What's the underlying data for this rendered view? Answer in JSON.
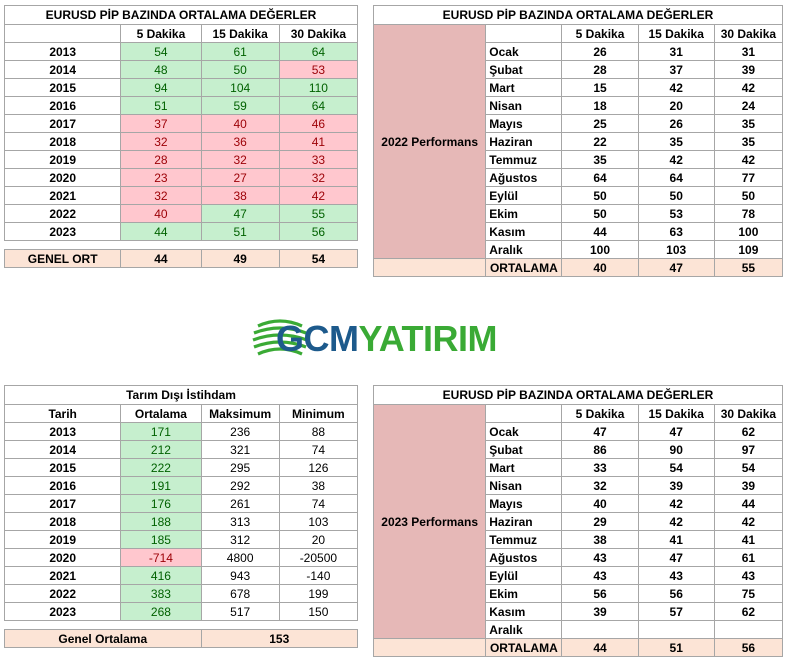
{
  "table1": {
    "title": "EURUSD  PİP BAZINDA ORTALAMA DEĞERLER",
    "headers": [
      "",
      "5 Dakika",
      "15 Dakika",
      "30 Dakika"
    ],
    "rows": [
      {
        "year": "2013",
        "v": [
          "54",
          "61",
          "64"
        ],
        "c": [
          "green",
          "green",
          "green"
        ]
      },
      {
        "year": "2014",
        "v": [
          "48",
          "50",
          "53"
        ],
        "c": [
          "green",
          "green",
          "red"
        ]
      },
      {
        "year": "2015",
        "v": [
          "94",
          "104",
          "110"
        ],
        "c": [
          "green",
          "green",
          "green"
        ]
      },
      {
        "year": "2016",
        "v": [
          "51",
          "59",
          "64"
        ],
        "c": [
          "green",
          "green",
          "green"
        ]
      },
      {
        "year": "2017",
        "v": [
          "37",
          "40",
          "46"
        ],
        "c": [
          "red",
          "red",
          "red"
        ]
      },
      {
        "year": "2018",
        "v": [
          "32",
          "36",
          "41"
        ],
        "c": [
          "red",
          "red",
          "red"
        ]
      },
      {
        "year": "2019",
        "v": [
          "28",
          "32",
          "33"
        ],
        "c": [
          "red",
          "red",
          "red"
        ]
      },
      {
        "year": "2020",
        "v": [
          "23",
          "27",
          "32"
        ],
        "c": [
          "red",
          "red",
          "red"
        ]
      },
      {
        "year": "2021",
        "v": [
          "32",
          "38",
          "42"
        ],
        "c": [
          "red",
          "red",
          "red"
        ]
      },
      {
        "year": "2022",
        "v": [
          "40",
          "47",
          "55"
        ],
        "c": [
          "red",
          "green",
          "green"
        ]
      },
      {
        "year": "2023",
        "v": [
          "44",
          "51",
          "56"
        ],
        "c": [
          "green",
          "green",
          "green"
        ]
      }
    ],
    "summary_label": "GENEL ORT",
    "summary": [
      "44",
      "49",
      "54"
    ]
  },
  "table2": {
    "title": "EURUSD  PİP BAZINDA ORTALAMA DEĞERLER",
    "headers": [
      "5 Dakika",
      "15 Dakika",
      "30 Dakika"
    ],
    "side_label": "2022 Performans",
    "rows": [
      {
        "m": "Ocak",
        "v": [
          "26",
          "31",
          "31"
        ]
      },
      {
        "m": "Şubat",
        "v": [
          "28",
          "37",
          "39"
        ]
      },
      {
        "m": "Mart",
        "v": [
          "15",
          "42",
          "42"
        ]
      },
      {
        "m": "Nisan",
        "v": [
          "18",
          "20",
          "24"
        ]
      },
      {
        "m": "Mayıs",
        "v": [
          "25",
          "26",
          "35"
        ]
      },
      {
        "m": "Haziran",
        "v": [
          "22",
          "35",
          "35"
        ]
      },
      {
        "m": "Temmuz",
        "v": [
          "35",
          "42",
          "42"
        ]
      },
      {
        "m": "Ağustos",
        "v": [
          "64",
          "64",
          "77"
        ]
      },
      {
        "m": "Eylül",
        "v": [
          "50",
          "50",
          "50"
        ]
      },
      {
        "m": "Ekim",
        "v": [
          "50",
          "53",
          "78"
        ]
      },
      {
        "m": "Kasım",
        "v": [
          "44",
          "63",
          "100"
        ]
      },
      {
        "m": "Aralık",
        "v": [
          "100",
          "103",
          "109"
        ]
      }
    ],
    "summary_label": "ORTALAMA",
    "summary": [
      "40",
      "47",
      "55"
    ]
  },
  "logo": {
    "part1": "GCM",
    "part2": "YATIRIM"
  },
  "table3": {
    "title": "Tarım Dışı İstihdam",
    "headers": [
      "Tarih",
      "Ortalama",
      "Maksimum",
      "Minimum"
    ],
    "rows": [
      {
        "year": "2013",
        "v": [
          "171",
          "236",
          "88"
        ],
        "c": "green"
      },
      {
        "year": "2014",
        "v": [
          "212",
          "321",
          "74"
        ],
        "c": "green"
      },
      {
        "year": "2015",
        "v": [
          "222",
          "295",
          "126"
        ],
        "c": "green"
      },
      {
        "year": "2016",
        "v": [
          "191",
          "292",
          "38"
        ],
        "c": "green"
      },
      {
        "year": "2017",
        "v": [
          "176",
          "261",
          "74"
        ],
        "c": "green"
      },
      {
        "year": "2018",
        "v": [
          "188",
          "313",
          "103"
        ],
        "c": "green"
      },
      {
        "year": "2019",
        "v": [
          "185",
          "312",
          "20"
        ],
        "c": "green"
      },
      {
        "year": "2020",
        "v": [
          "-714",
          "4800",
          "-20500"
        ],
        "c": "red"
      },
      {
        "year": "2021",
        "v": [
          "416",
          "943",
          "-140"
        ],
        "c": "green"
      },
      {
        "year": "2022",
        "v": [
          "383",
          "678",
          "199"
        ],
        "c": "green"
      },
      {
        "year": "2023",
        "v": [
          "268",
          "517",
          "150"
        ],
        "c": "green"
      }
    ],
    "summary_label": "Genel Ortalama",
    "summary": "153"
  },
  "table4": {
    "title": "EURUSD  PİP BAZINDA ORTALAMA DEĞERLER",
    "headers": [
      "5 Dakika",
      "15 Dakika",
      "30 Dakika"
    ],
    "side_label": "2023 Performans",
    "rows": [
      {
        "m": "Ocak",
        "v": [
          "47",
          "47",
          "62"
        ]
      },
      {
        "m": "Şubat",
        "v": [
          "86",
          "90",
          "97"
        ]
      },
      {
        "m": "Mart",
        "v": [
          "33",
          "54",
          "54"
        ]
      },
      {
        "m": "Nisan",
        "v": [
          "32",
          "39",
          "39"
        ]
      },
      {
        "m": "Mayıs",
        "v": [
          "40",
          "42",
          "44"
        ]
      },
      {
        "m": "Haziran",
        "v": [
          "29",
          "42",
          "42"
        ]
      },
      {
        "m": "Temmuz",
        "v": [
          "38",
          "41",
          "41"
        ]
      },
      {
        "m": "Ağustos",
        "v": [
          "43",
          "47",
          "61"
        ]
      },
      {
        "m": "Eylül",
        "v": [
          "43",
          "43",
          "43"
        ]
      },
      {
        "m": "Ekim",
        "v": [
          "56",
          "56",
          "75"
        ]
      },
      {
        "m": "Kasım",
        "v": [
          "39",
          "57",
          "62"
        ]
      },
      {
        "m": "Aralık",
        "v": [
          "",
          "",
          ""
        ]
      }
    ],
    "summary_label": "ORTALAMA",
    "summary": [
      "44",
      "51",
      "56"
    ]
  }
}
